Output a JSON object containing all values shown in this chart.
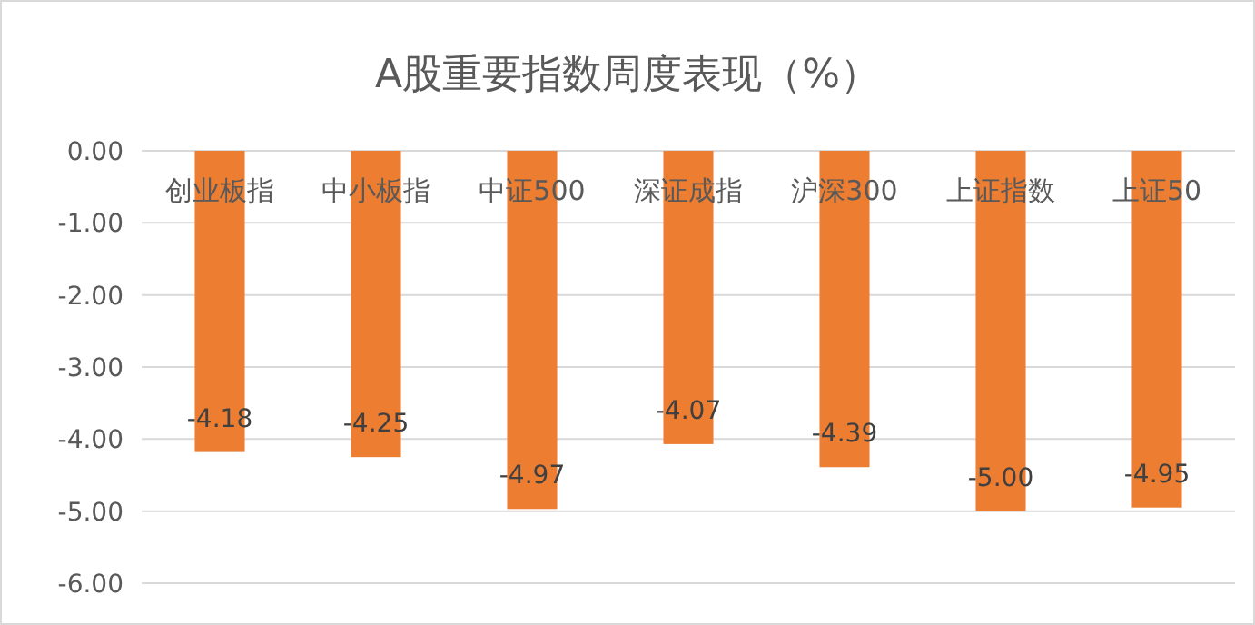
{
  "chart_data": {
    "type": "bar",
    "title": "A股重要指数周度表现（%）",
    "categories": [
      "创业板指",
      "中小板指",
      "中证500",
      "深证成指",
      "沪深300",
      "上证指数",
      "上证50"
    ],
    "values": [
      -4.18,
      -4.25,
      -4.97,
      -4.07,
      -4.39,
      -5.0,
      -4.95
    ],
    "value_labels": [
      "-4.18",
      "-4.25",
      "-4.97",
      "-4.07",
      "-4.39",
      "-5.00",
      "-4.95"
    ],
    "color": "#ed7d31",
    "ylim": [
      -6,
      0
    ],
    "yticks": [
      {
        "value": 0,
        "label": "0.00"
      },
      {
        "value": -1,
        "label": "-1.00"
      },
      {
        "value": -2,
        "label": "-2.00"
      },
      {
        "value": -3,
        "label": "-3.00"
      },
      {
        "value": -4,
        "label": "-4.00"
      },
      {
        "value": -5,
        "label": "-5.00"
      },
      {
        "value": -6,
        "label": "-6.00"
      }
    ],
    "grid": "y"
  }
}
